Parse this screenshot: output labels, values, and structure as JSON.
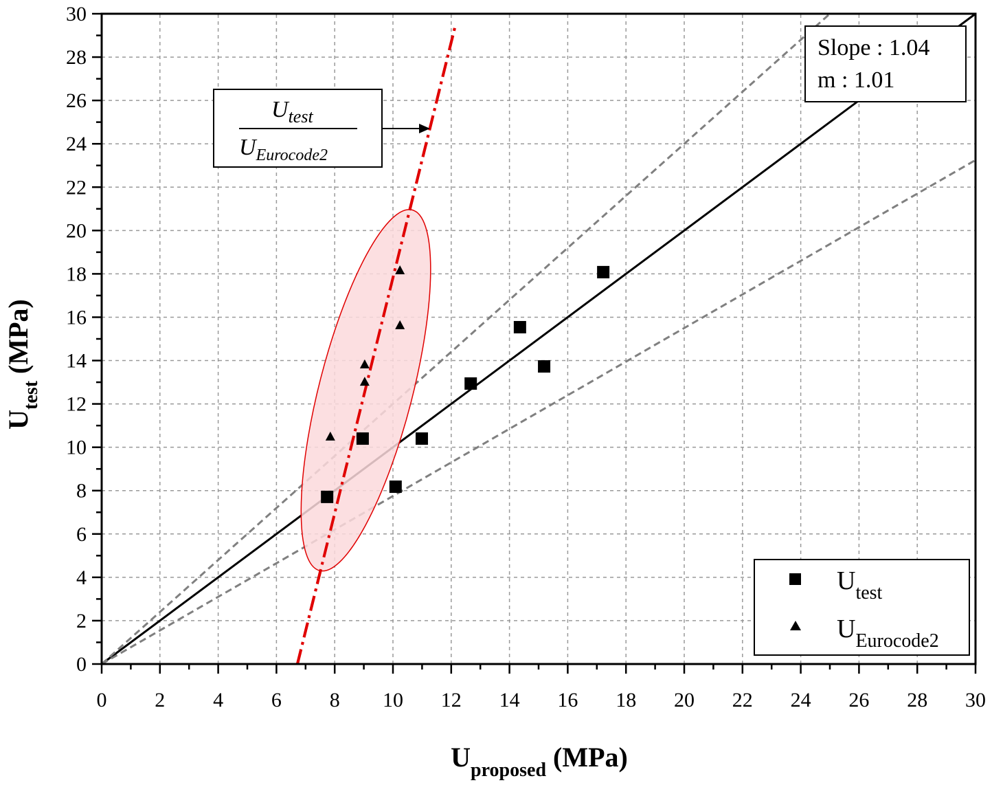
{
  "chart_data": {
    "type": "scatter",
    "xlabel": {
      "main": "U",
      "sub": "proposed",
      "unit": " (MPa)"
    },
    "ylabel": {
      "main": "U",
      "sub": "test",
      "unit": " (MPa)"
    },
    "xlim": [
      0,
      30
    ],
    "ylim": [
      0,
      30
    ],
    "x_ticks": [
      0,
      2,
      4,
      6,
      8,
      10,
      12,
      14,
      16,
      18,
      20,
      22,
      24,
      26,
      28,
      30
    ],
    "y_ticks": [
      0,
      2,
      4,
      6,
      8,
      10,
      12,
      14,
      16,
      18,
      20,
      22,
      24,
      26,
      28,
      30
    ],
    "grid": true,
    "series": [
      {
        "name": "U_test",
        "label_main": "U",
        "label_sub": "test",
        "marker": "square",
        "color": "#000000",
        "points": [
          [
            7.74,
            7.71
          ],
          [
            8.96,
            10.4
          ],
          [
            10.09,
            8.18
          ],
          [
            10.99,
            10.4
          ],
          [
            12.67,
            12.94
          ],
          [
            14.36,
            15.54
          ],
          [
            15.19,
            13.73
          ],
          [
            17.22,
            18.08
          ]
        ]
      },
      {
        "name": "U_Eurocode2",
        "label_main": "U",
        "label_sub": "Eurocode2",
        "marker": "triangle",
        "color": "#000000",
        "points": [
          [
            7.85,
            10.5
          ],
          [
            9.03,
            13.83
          ],
          [
            9.03,
            13.03
          ],
          [
            10.24,
            18.17
          ],
          [
            10.24,
            15.64
          ]
        ]
      }
    ],
    "lines": [
      {
        "name": "fit-line",
        "slope": 1.0,
        "intercept": 0,
        "style": "solid",
        "color": "#000000"
      },
      {
        "name": "upper-bound-line",
        "slope": 1.2,
        "intercept": 0,
        "style": "dashed",
        "color": "#808080"
      },
      {
        "name": "lower-bound-line",
        "slope": 0.775,
        "intercept": 0,
        "style": "dashed",
        "color": "#808080"
      },
      {
        "name": "eurocode-trend-line",
        "from": [
          6.72,
          0
        ],
        "to": [
          12.15,
          29.5
        ],
        "style": "dashdot",
        "color": "#e00000"
      }
    ],
    "highlight_ellipse": {
      "from": [
        7.48,
        4.31
      ],
      "to": [
        10.66,
        20.95
      ],
      "fill": "#fbd9dc",
      "stroke": "#e00000"
    },
    "annotations": {
      "stats": {
        "slope": "Slope : 1.04",
        "m": "m : 1.01"
      },
      "ratio": {
        "numerator_main": "U",
        "numerator_sub": "test",
        "denominator_main": "U",
        "denominator_sub": "Eurocode2"
      }
    },
    "legend_position": "bottom-right"
  }
}
